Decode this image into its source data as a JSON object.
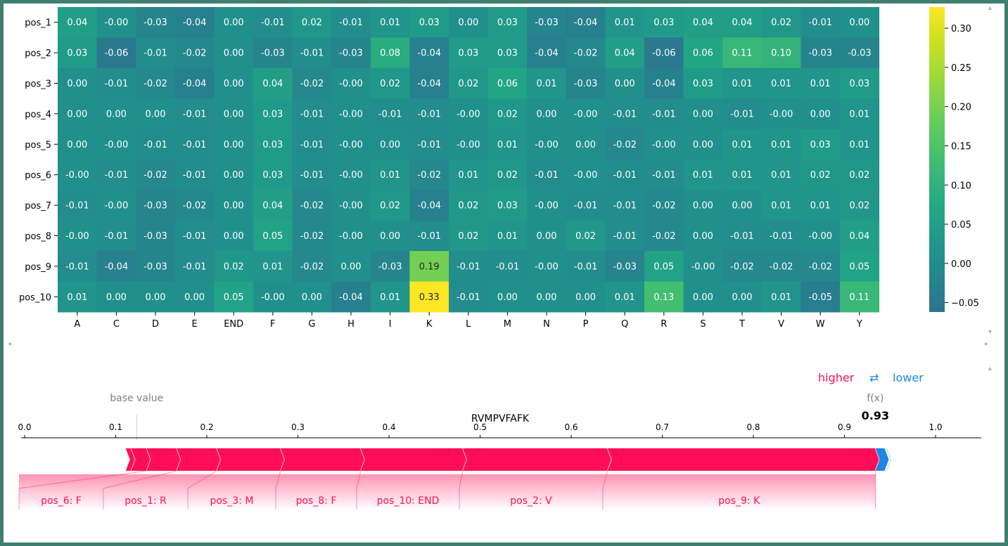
{
  "colors": {
    "frame": "#3f7f6f",
    "higher": "#ff0d57",
    "lower": "#1e88e5",
    "base_label": "#808080",
    "viridis_low": "#2c728e",
    "viridis_high": "#fde725"
  },
  "chart_data": [
    {
      "type": "heatmap",
      "row_labels": [
        "pos_1",
        "pos_2",
        "pos_3",
        "pos_4",
        "pos_5",
        "pos_6",
        "pos_7",
        "pos_8",
        "pos_9",
        "pos_10"
      ],
      "col_labels": [
        "A",
        "C",
        "D",
        "E",
        "END",
        "F",
        "G",
        "H",
        "I",
        "K",
        "L",
        "M",
        "N",
        "P",
        "Q",
        "R",
        "S",
        "T",
        "V",
        "W",
        "Y"
      ],
      "values": [
        [
          "0.04",
          "-0.00",
          "-0.03",
          "-0.04",
          "0.00",
          "-0.01",
          "0.02",
          "-0.01",
          "0.01",
          "0.03",
          "0.00",
          "0.03",
          "-0.03",
          "-0.04",
          "0.01",
          "0.03",
          "0.04",
          "0.04",
          "0.02",
          "-0.01",
          "0.00"
        ],
        [
          "0.03",
          "-0.06",
          "-0.01",
          "-0.02",
          "0.00",
          "-0.03",
          "-0.01",
          "-0.03",
          "0.08",
          "-0.04",
          "0.03",
          "0.03",
          "-0.04",
          "-0.02",
          "0.04",
          "-0.06",
          "0.06",
          "0.11",
          "0.10",
          "-0.03",
          "-0.03"
        ],
        [
          "0.00",
          "-0.01",
          "-0.02",
          "-0.04",
          "0.00",
          "0.04",
          "-0.02",
          "-0.00",
          "0.02",
          "-0.04",
          "0.02",
          "0.06",
          "0.01",
          "-0.03",
          "0.00",
          "-0.04",
          "0.03",
          "0.01",
          "0.01",
          "0.01",
          "0.03"
        ],
        [
          "0.00",
          "0.00",
          "0.00",
          "-0.01",
          "0.00",
          "0.03",
          "-0.01",
          "-0.00",
          "-0.01",
          "-0.01",
          "-0.00",
          "0.02",
          "0.00",
          "-0.00",
          "-0.01",
          "-0.01",
          "0.00",
          "-0.01",
          "-0.00",
          "0.00",
          "0.01"
        ],
        [
          "0.00",
          "-0.00",
          "-0.01",
          "-0.01",
          "0.00",
          "0.03",
          "-0.01",
          "-0.00",
          "0.00",
          "-0.01",
          "-0.00",
          "0.01",
          "-0.00",
          "0.00",
          "-0.02",
          "-0.00",
          "0.00",
          "0.01",
          "0.01",
          "0.03",
          "0.01"
        ],
        [
          "-0.00",
          "-0.01",
          "-0.02",
          "-0.01",
          "0.00",
          "0.03",
          "-0.01",
          "-0.00",
          "0.01",
          "-0.02",
          "0.01",
          "0.02",
          "-0.01",
          "-0.00",
          "-0.01",
          "-0.01",
          "0.01",
          "0.01",
          "0.01",
          "0.02",
          "0.02"
        ],
        [
          "-0.01",
          "-0.00",
          "-0.03",
          "-0.02",
          "0.00",
          "0.04",
          "-0.02",
          "-0.00",
          "0.02",
          "-0.04",
          "0.02",
          "0.03",
          "-0.00",
          "-0.01",
          "-0.01",
          "-0.02",
          "0.00",
          "0.00",
          "0.01",
          "0.01",
          "0.02"
        ],
        [
          "-0.00",
          "-0.01",
          "-0.03",
          "-0.01",
          "0.00",
          "0.05",
          "-0.02",
          "-0.00",
          "0.00",
          "-0.01",
          "0.02",
          "0.01",
          "0.00",
          "0.02",
          "-0.01",
          "-0.02",
          "0.00",
          "-0.01",
          "-0.01",
          "-0.00",
          "0.04"
        ],
        [
          "-0.01",
          "-0.04",
          "-0.03",
          "-0.01",
          "0.02",
          "0.01",
          "-0.02",
          "0.00",
          "-0.03",
          "0.19",
          "-0.01",
          "-0.01",
          "-0.00",
          "-0.01",
          "-0.03",
          "0.05",
          "-0.00",
          "-0.02",
          "-0.02",
          "-0.02",
          "0.05"
        ],
        [
          "0.01",
          "0.00",
          "0.00",
          "0.00",
          "0.05",
          "-0.00",
          "0.00",
          "-0.04",
          "0.01",
          "0.33",
          "-0.01",
          "0.00",
          "0.00",
          "0.00",
          "0.01",
          "0.13",
          "0.00",
          "0.00",
          "0.01",
          "-0.05",
          "0.11"
        ]
      ],
      "colorbar": {
        "vmin": -0.062,
        "vmax": 0.327,
        "ticks": [
          "0.30",
          "0.25",
          "0.20",
          "0.15",
          "0.10",
          "0.05",
          "0.00",
          "−0.05"
        ],
        "colormap": "viridis"
      }
    },
    {
      "type": "force",
      "title": "RVMPVFAFK",
      "base_value_label": "base value",
      "base_value": 0.123,
      "fx_label": "f(x)",
      "fx_value": "0.93",
      "output_value": 0.93,
      "legend": {
        "higher": "higher",
        "arrow": "⇄",
        "lower": "lower"
      },
      "axis": {
        "xlim": [
          -0.004,
          1.05
        ],
        "ticks": [
          "0.0",
          "0.1",
          "0.2",
          "0.3",
          "0.4",
          "0.5",
          "0.6",
          "0.7",
          "0.8",
          "0.9",
          "1.0"
        ]
      },
      "positive_segments": [
        {
          "start": 0.111,
          "end": 0.117
        },
        {
          "start": 0.117,
          "end": 0.134
        },
        {
          "start": 0.134,
          "end": 0.167
        },
        {
          "start": 0.167,
          "end": 0.211
        },
        {
          "start": 0.211,
          "end": 0.281
        },
        {
          "start": 0.281,
          "end": 0.369
        },
        {
          "start": 0.369,
          "end": 0.481
        },
        {
          "start": 0.481,
          "end": 0.64
        },
        {
          "start": 0.64,
          "end": 0.934
        }
      ],
      "negative_segment": {
        "start": 0.934,
        "end": 0.944
      },
      "labels": [
        "pos_6: F",
        "pos_1: R",
        "pos_3: M",
        "pos_8: F",
        "pos_10: END",
        "pos_2: V",
        "pos_9: K"
      ]
    }
  ]
}
